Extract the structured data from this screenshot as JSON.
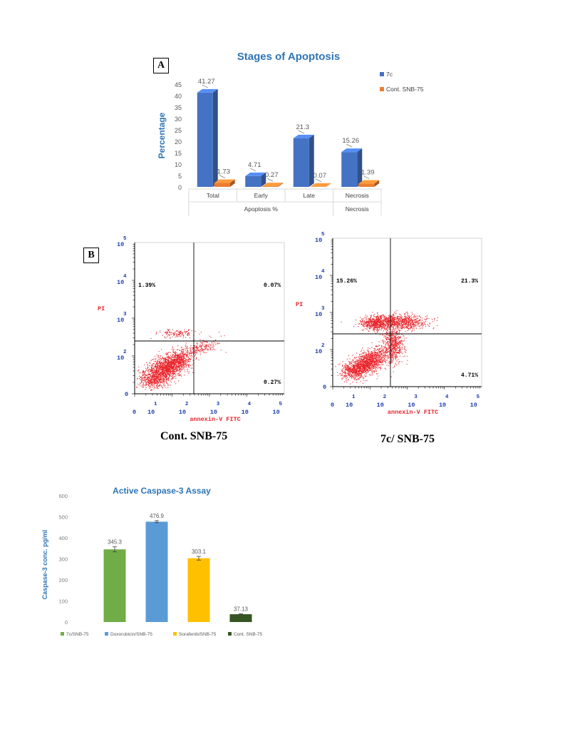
{
  "panel_labels": {
    "a": "A",
    "b": "B"
  },
  "captions": {
    "cont": "Cont. SNB-75",
    "c7": "7c/ SNB-75"
  },
  "colors": {
    "series_7c": "#4472C4",
    "series_cont": "#ED7D31",
    "title_blue": "#2E75B6",
    "flow_dots": "#E8232A",
    "axis_tick_blue": "#1F3FB0",
    "axis_title_red": "#E8232A",
    "bar_7c": "#70AD47",
    "bar_doxo": "#5B9BD5",
    "bar_sora": "#FFC000",
    "bar_cont": "#375623"
  },
  "chart_data": [
    {
      "type": "bar",
      "title": "Stages of Apoptosis",
      "ylabel": "Percentage",
      "ylim": [
        0,
        45
      ],
      "yticks": [
        "0",
        "5",
        "10",
        "15",
        "20",
        "25",
        "30",
        "35",
        "40",
        "45"
      ],
      "categories": [
        "Total",
        "Early",
        "Late",
        "Necrosis"
      ],
      "group_labels": [
        "Apoptosis %",
        "Necrosis"
      ],
      "series": [
        {
          "name": "7c",
          "values": [
            41.27,
            4.71,
            21.3,
            15.26
          ],
          "labels": [
            "41.27",
            "4.71",
            "21.3",
            "15.26"
          ]
        },
        {
          "name": "Cont. SNB-75",
          "values": [
            1.73,
            0.27,
            0.07,
            1.39
          ],
          "labels": [
            "1.73",
            "0.27",
            "0.07",
            "1.39"
          ]
        }
      ],
      "legend": "top-right",
      "style": "3d"
    },
    {
      "type": "scatter",
      "name": "Cont. SNB-75",
      "xlabel": "annexin-V FITC",
      "ylabel": "PI",
      "scale": "log",
      "x_tick_bases": [
        "10",
        "10",
        "10",
        "10",
        "10"
      ],
      "x_tick_exps": [
        "1",
        "2",
        "3",
        "4",
        "5"
      ],
      "y_tick_bases": [
        "10",
        "10",
        "10",
        "10"
      ],
      "y_tick_exps": [
        "2",
        "3",
        "4",
        "5"
      ],
      "axis_zero": "0",
      "quadrants": {
        "upper_left": "1.39%",
        "upper_right": "0.07%",
        "lower_right": "0.27%"
      }
    },
    {
      "type": "scatter",
      "name": "7c/ SNB-75",
      "xlabel": "annexin-V FITC",
      "ylabel": "PI",
      "scale": "log",
      "x_tick_bases": [
        "10",
        "10",
        "10",
        "10",
        "10"
      ],
      "x_tick_exps": [
        "1",
        "2",
        "3",
        "4",
        "5"
      ],
      "y_tick_bases": [
        "10",
        "10",
        "10",
        "10"
      ],
      "y_tick_exps": [
        "2",
        "3",
        "4",
        "5"
      ],
      "axis_zero": "0",
      "quadrants": {
        "upper_left": "15.26%",
        "upper_right": "21.3%",
        "lower_right": "4.71%"
      }
    },
    {
      "type": "bar",
      "title": "Active Caspase-3 Assay",
      "ylabel": "Caspase-3 conc. pg/ml",
      "ylim": [
        0,
        600
      ],
      "yticks": [
        "0",
        "100",
        "200",
        "300",
        "400",
        "500",
        "600"
      ],
      "categories": [
        "7c/SNB-75",
        "Doxorubicin/SNB-75",
        "Sorafenib/SNB-75",
        "Cont. SNB-75"
      ],
      "values": [
        345.3,
        476.9,
        303.1,
        37.13
      ],
      "labels": [
        "345.3",
        "476.9",
        "303.1",
        "37.13"
      ],
      "errors": [
        12,
        5,
        9,
        2
      ],
      "legend": "bottom"
    }
  ]
}
